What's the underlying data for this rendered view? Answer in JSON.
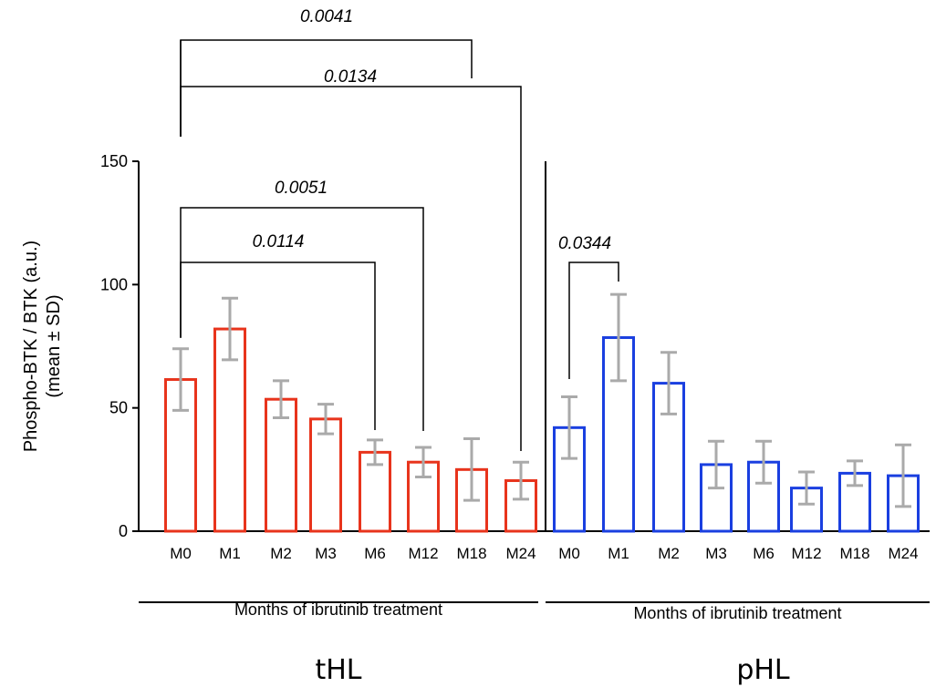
{
  "chart_data": {
    "type": "bar",
    "ylabel": [
      "Phospho-BTK / BTK (a.u.)",
      "(mean ± SD)"
    ],
    "ylim": [
      0,
      150
    ],
    "yticks": [
      "0",
      "50",
      "100",
      "150"
    ],
    "grid": false,
    "panels": [
      {
        "group": "tHL",
        "xlabel": "Months of ibrutinib treatment",
        "color": "#e8341c",
        "categories": [
          "M0",
          "M1",
          "M2",
          "M3",
          "M6",
          "M12",
          "M18",
          "M24"
        ],
        "values": [
          61.5,
          82,
          53.5,
          45.5,
          32,
          28,
          25,
          20.5
        ],
        "errors": [
          12.5,
          12.5,
          7.5,
          6,
          5,
          6,
          12.5,
          7.5
        ],
        "comparisons": [
          {
            "from": "M0",
            "to": "M18",
            "p": "0.0041"
          },
          {
            "from": "M0",
            "to": "M24",
            "p": "0.0134"
          },
          {
            "from": "M0",
            "to": "M12",
            "p": "0.0051"
          },
          {
            "from": "M0",
            "to": "M6",
            "p": "0.0114"
          }
        ]
      },
      {
        "group": "pHL",
        "xlabel": "Months of ibrutinib treatment",
        "color": "#1a3fe0",
        "categories": [
          "M0",
          "M1",
          "M2",
          "M3",
          "M6",
          "M12",
          "M18",
          "M24"
        ],
        "values": [
          42,
          78.5,
          60,
          27,
          28,
          17.5,
          23.5,
          22.5
        ],
        "errors": [
          12.5,
          17.5,
          12.5,
          9.5,
          8.5,
          6.5,
          5,
          12.5
        ],
        "comparisons": [
          {
            "from": "M0",
            "to": "M1",
            "p": "0.0344"
          }
        ]
      }
    ]
  }
}
